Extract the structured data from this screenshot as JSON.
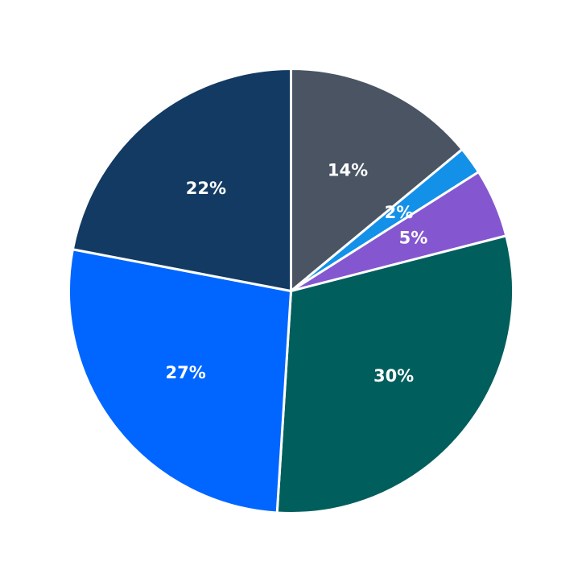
{
  "chart_data": {
    "type": "pie",
    "title": "",
    "start_angle_deg": 90,
    "direction": "clockwise",
    "legend": "none",
    "slices": [
      {
        "value": 14,
        "label": "14%",
        "color": "#4a5463"
      },
      {
        "value": 2,
        "label": "2%",
        "color": "#1390e8"
      },
      {
        "value": 5,
        "label": "5%",
        "color": "#8457d0"
      },
      {
        "value": 30,
        "label": "30%",
        "color": "#005e5d"
      },
      {
        "value": 27,
        "label": "27%",
        "color": "#0066ff"
      },
      {
        "value": 22,
        "label": "22%",
        "color": "#133a62"
      }
    ]
  }
}
